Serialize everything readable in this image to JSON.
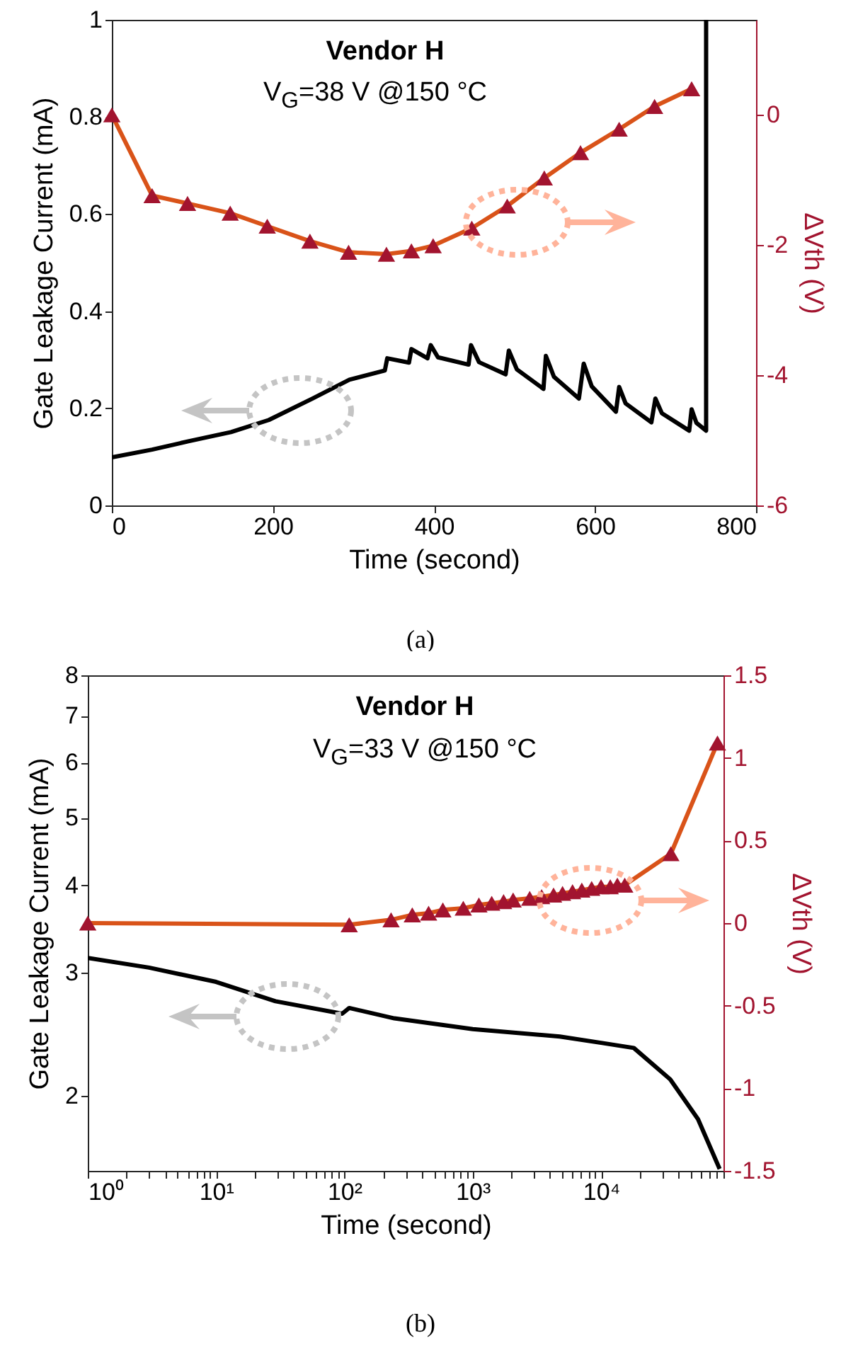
{
  "chart_data": [
    {
      "type": "line",
      "xlabel": "Time (second)",
      "ylabel": "Gate Leakage Current (mA)",
      "y2label": "ΔVth (V)",
      "annotations": [
        "Vendor H",
        "V$_{G}$=38 V @150 °C",
        "(a)"
      ],
      "xlim": [
        0,
        800
      ],
      "xticks": [
        0,
        200,
        400,
        600,
        800
      ],
      "ylim": [
        0,
        1
      ],
      "yticks": [
        0,
        0.2,
        0.4,
        0.6,
        0.8,
        1
      ],
      "y2lim": [
        -6,
        1.46
      ],
      "y2ticks": [
        -6,
        -4,
        -2,
        0
      ],
      "series": [
        {
          "color": "#000000",
          "marker": "none",
          "x": [
            0,
            50,
            95,
            148,
            195,
            249,
            295,
            339,
            342,
            369,
            372,
            392,
            396,
            405,
            443,
            446,
            456,
            489,
            493,
            503,
            536,
            539,
            549,
            580,
            586,
            596,
            626,
            630,
            638,
            670,
            675,
            683,
            717,
            720,
            726,
            738,
            738
          ],
          "values": [
            0.099,
            0.115,
            0.132,
            0.151,
            0.176,
            0.22,
            0.259,
            0.278,
            0.303,
            0.294,
            0.322,
            0.303,
            0.33,
            0.305,
            0.29,
            0.33,
            0.295,
            0.27,
            0.319,
            0.28,
            0.24,
            0.308,
            0.265,
            0.22,
            0.292,
            0.245,
            0.193,
            0.244,
            0.21,
            0.171,
            0.22,
            0.19,
            0.154,
            0.198,
            0.17,
            0.154,
            1.0
          ]
        },
        {
          "axis": "y2",
          "color": "#d95319",
          "marker": "triangle",
          "colors": [
            "#a2142f",
            "#a2142f",
            "#a2142f",
            "#a2142f",
            "#a2142f",
            "#a2142f",
            "#a2142f",
            "#a2142f",
            "#a2142f",
            "#a2142f",
            "#a2142f",
            "#a2142f",
            "#a2142f",
            "#a2142f",
            "#a2142f",
            "#a2142f",
            "#a2142f"
          ],
          "x": [
            0,
            50,
            94,
            147,
            193,
            246,
            294,
            341,
            372,
            399,
            447,
            491,
            537,
            582,
            630,
            674,
            720
          ],
          "values": [
            0,
            -1.24,
            -1.36,
            -1.51,
            -1.71,
            -1.94,
            -2.11,
            -2.14,
            -2.09,
            -2.01,
            -1.74,
            -1.4,
            -0.97,
            -0.58,
            -0.22,
            0.13,
            0.4
          ]
        }
      ]
    },
    {
      "type": "line",
      "xlabel": "Time (second)",
      "ylabel": "Gate Leakage Current (mA)",
      "y2label": "ΔVth (V)",
      "log": "xy",
      "annotations": [
        "Vendor H",
        "V$_{G}$=33 V @150 °C",
        "(b)"
      ],
      "xlim": [
        1,
        90000
      ],
      "xticks": [
        {
          "value": 1,
          "label": "10⁰"
        },
        {
          "value": 2,
          "label": null
        },
        {
          "value": 3,
          "label": null
        },
        {
          "value": 4,
          "label": null
        },
        {
          "value": 5,
          "label": null
        },
        {
          "value": 6,
          "label": null
        },
        {
          "value": 7,
          "label": null
        },
        {
          "value": 8,
          "label": null
        },
        {
          "value": 9,
          "label": null
        },
        {
          "value": 10,
          "label": "10¹"
        },
        {
          "value": 20,
          "label": null
        },
        {
          "value": 30,
          "label": null
        },
        {
          "value": 40,
          "label": null
        },
        {
          "value": 50,
          "label": null
        },
        {
          "value": 60,
          "label": null
        },
        {
          "value": 70,
          "label": null
        },
        {
          "value": 80,
          "label": null
        },
        {
          "value": 90,
          "label": null
        },
        {
          "value": 100,
          "label": "10²"
        },
        {
          "value": 200,
          "label": null
        },
        {
          "value": 300,
          "label": null
        },
        {
          "value": 400,
          "label": null
        },
        {
          "value": 500,
          "label": null
        },
        {
          "value": 600,
          "label": null
        },
        {
          "value": 700,
          "label": null
        },
        {
          "value": 800,
          "label": null
        },
        {
          "value": 900,
          "label": null
        },
        {
          "value": 1000,
          "label": "10³"
        },
        {
          "value": 2000,
          "label": null
        },
        {
          "value": 3000,
          "label": null
        },
        {
          "value": 4000,
          "label": null
        },
        {
          "value": 5000,
          "label": null
        },
        {
          "value": 6000,
          "label": null
        },
        {
          "value": 7000,
          "label": null
        },
        {
          "value": 8000,
          "label": null
        },
        {
          "value": 9000,
          "label": null
        },
        {
          "value": 10000,
          "label": "10⁴"
        },
        {
          "value": 20000,
          "label": null
        },
        {
          "value": 30000,
          "label": null
        },
        {
          "value": 40000,
          "label": null
        },
        {
          "value": 50000,
          "label": null
        },
        {
          "value": 60000,
          "label": null
        },
        {
          "value": 70000,
          "label": null
        },
        {
          "value": 80000,
          "label": null
        },
        {
          "value": 90000,
          "label": null
        }
      ],
      "ylim": [
        1.56,
        8
      ],
      "yticks": [
        2,
        3,
        4,
        5,
        6,
        7,
        8
      ],
      "y2lim": [
        -1.5,
        1.5
      ],
      "y2ticks": [
        -1.5,
        -1,
        -0.5,
        0,
        0.5,
        1,
        1.5
      ],
      "series": [
        {
          "color": "#000000",
          "marker": "none",
          "x": [
            1,
            3,
            10,
            29,
            96,
            109,
            245,
            1000,
            4770,
            10000,
            18000,
            34600,
            57000,
            84000
          ],
          "values": [
            3.15,
            3.05,
            2.91,
            2.73,
            2.62,
            2.67,
            2.58,
            2.49,
            2.43,
            2.38,
            2.34,
            2.11,
            1.85,
            1.57
          ]
        },
        {
          "axis": "y2",
          "color": "#d95319",
          "marker": "triangle",
          "colors": [
            "#a2142f",
            "#a2142f",
            "#a2142f",
            "#a2142f",
            "#a2142f",
            "#a2142f",
            "#a2142f",
            "#a2142f",
            "#a2142f",
            "#a2142f",
            "#a2142f",
            "#a2142f",
            "#a2142f",
            "#a2142f",
            "#a2142f",
            "#a2142f",
            "#a2142f",
            "#a2142f",
            "#a2142f",
            "#a2142f",
            "#a2142f",
            "#a2142f",
            "#a2142f",
            "#a2142f"
          ],
          "x": [
            1,
            109,
            231,
            338,
            453,
            585,
            844,
            1117,
            1406,
            1740,
            2065,
            2780,
            3444,
            4265,
            5012,
            5995,
            7080,
            8450,
            10000,
            11800,
            13400,
            15300,
            35000,
            80800
          ],
          "values": [
            0,
            -0.01,
            0.02,
            0.05,
            0.06,
            0.08,
            0.09,
            0.11,
            0.12,
            0.13,
            0.14,
            0.15,
            0.16,
            0.17,
            0.18,
            0.19,
            0.2,
            0.21,
            0.22,
            0.22,
            0.23,
            0.23,
            0.42,
            1.09
          ]
        }
      ]
    }
  ]
}
